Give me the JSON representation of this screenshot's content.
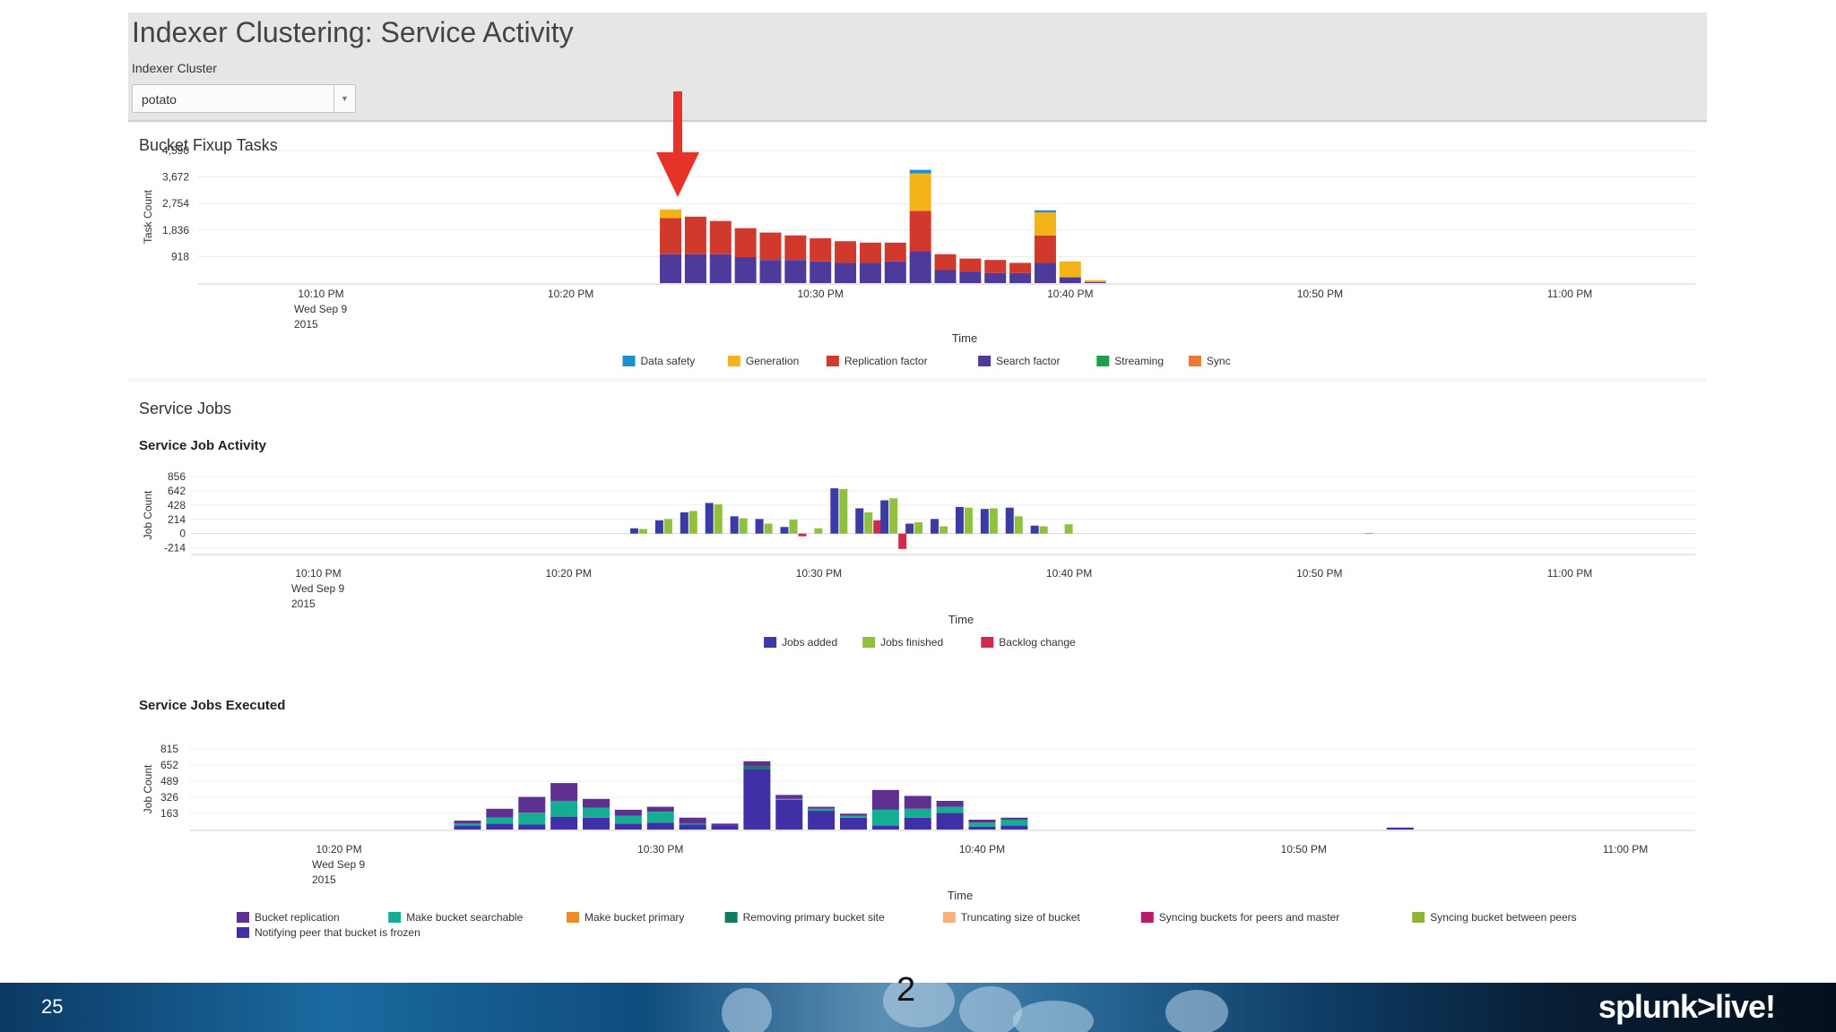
{
  "dashboard": {
    "title": "Indexer Clustering: Service Activity",
    "cluster_label": "Indexer Cluster",
    "cluster_value": "potato"
  },
  "colors": {
    "data_safety": "#1f8ecd",
    "generation": "#f2b418",
    "replication_factor": "#d0392b",
    "search_factor": "#4d3a9a",
    "streaming": "#1e9f4c",
    "sync": "#ee7731",
    "jobs_added": "#3b3ba6",
    "jobs_finished": "#8fc13e",
    "backlog_change": "#d3294e",
    "bucket_replication": "#5e3190",
    "make_bucket_searchable": "#16ae93",
    "make_bucket_primary": "#ef8a2a",
    "removing_primary_bucket_site": "#0d7b62",
    "truncating_size_of_bucket": "#f7b07a",
    "syncing_buckets_for_peers_and_master": "#b61c6a",
    "syncing_bucket_between_peers": "#8cb736",
    "notifying_peer_that_bucket_is_frozen": "#4030a8",
    "red_arrow": "#e5332a"
  },
  "chart_data": [
    {
      "id": "fixup",
      "type": "bar",
      "panel_title": "Bucket Fixup Tasks",
      "xlabel": "Time",
      "ylabel": "Task Count",
      "yticks": [
        "4,590",
        "3,672",
        "2,754",
        "1,836",
        "918"
      ],
      "ytick_values": [
        4590,
        3672,
        2754,
        1836,
        918
      ],
      "ylim": [
        0,
        4590
      ],
      "x_minutes": [
        24,
        25,
        26,
        27,
        28,
        29,
        30,
        31,
        32,
        33,
        34,
        35,
        36,
        37,
        38,
        39,
        40,
        41
      ],
      "xlim_minutes": [
        5,
        65
      ],
      "xticks": [
        {
          "min": 10,
          "lines": [
            "10:10 PM",
            "Wed Sep 9",
            "2015"
          ]
        },
        {
          "min": 20,
          "lines": [
            "10:20 PM"
          ]
        },
        {
          "min": 30,
          "lines": [
            "10:30 PM"
          ]
        },
        {
          "min": 40,
          "lines": [
            "10:40 PM"
          ]
        },
        {
          "min": 50,
          "lines": [
            "10:50 PM"
          ]
        },
        {
          "min": 60,
          "lines": [
            "11:00 PM"
          ]
        }
      ],
      "series": [
        {
          "name": "Data safety",
          "color_key": "data_safety",
          "values": [
            0,
            0,
            0,
            0,
            0,
            0,
            0,
            0,
            0,
            0,
            120,
            0,
            0,
            0,
            0,
            70,
            0,
            0
          ]
        },
        {
          "name": "Generation",
          "color_key": "generation",
          "values": [
            300,
            0,
            0,
            0,
            0,
            0,
            0,
            0,
            0,
            0,
            1300,
            0,
            0,
            0,
            0,
            800,
            550,
            60
          ]
        },
        {
          "name": "Replication factor",
          "color_key": "replication_factor",
          "values": [
            1250,
            1300,
            1150,
            1000,
            950,
            850,
            800,
            750,
            700,
            650,
            1400,
            550,
            450,
            450,
            350,
            950,
            0,
            0
          ]
        },
        {
          "name": "Search factor",
          "color_key": "search_factor",
          "values": [
            1000,
            1000,
            1000,
            900,
            800,
            800,
            750,
            700,
            700,
            750,
            1100,
            450,
            400,
            350,
            350,
            700,
            200,
            40
          ]
        },
        {
          "name": "Streaming",
          "color_key": "streaming",
          "values": []
        },
        {
          "name": "Sync",
          "color_key": "sync",
          "values": []
        }
      ]
    },
    {
      "id": "activity",
      "type": "bar",
      "panel_title": "Service Jobs",
      "title": "Service Job Activity",
      "xlabel": "Time",
      "ylabel": "Job Count",
      "yticks": [
        "856",
        "642",
        "428",
        "214",
        "0",
        "-214"
      ],
      "ytick_values": [
        856,
        642,
        428,
        214,
        0,
        -214
      ],
      "ylim": [
        -300,
        856
      ],
      "x_minutes": [
        23,
        24,
        25,
        26,
        27,
        28,
        29,
        30,
        31,
        32,
        33,
        34,
        35,
        36,
        37,
        38,
        39,
        40,
        41,
        52
      ],
      "xlim_minutes": [
        5,
        65
      ],
      "xticks": [
        {
          "min": 10,
          "lines": [
            "10:10 PM",
            "Wed Sep 9",
            "2015"
          ]
        },
        {
          "min": 20,
          "lines": [
            "10:20 PM"
          ]
        },
        {
          "min": 30,
          "lines": [
            "10:30 PM"
          ]
        },
        {
          "min": 40,
          "lines": [
            "10:40 PM"
          ]
        },
        {
          "min": 50,
          "lines": [
            "10:50 PM"
          ]
        },
        {
          "min": 60,
          "lines": [
            "11:00 PM"
          ]
        }
      ],
      "series": [
        {
          "name": "Jobs added",
          "color_key": "jobs_added",
          "values": [
            80,
            200,
            320,
            460,
            260,
            220,
            100,
            0,
            680,
            380,
            500,
            150,
            220,
            400,
            370,
            390,
            120,
            0,
            0,
            0
          ]
        },
        {
          "name": "Jobs finished",
          "color_key": "jobs_finished",
          "values": [
            70,
            220,
            340,
            440,
            230,
            150,
            210,
            80,
            670,
            320,
            530,
            170,
            110,
            390,
            380,
            260,
            110,
            140,
            0,
            10
          ]
        },
        {
          "name": "Backlog change",
          "color_key": "backlog_change",
          "values": [
            0,
            0,
            0,
            0,
            0,
            0,
            -40,
            0,
            0,
            200,
            -230,
            0,
            0,
            0,
            0,
            0,
            0,
            0,
            0,
            0
          ]
        }
      ]
    },
    {
      "id": "executed",
      "type": "bar",
      "title": "Service Jobs Executed",
      "xlabel": "Time",
      "ylabel": "Job Count",
      "yticks": [
        "815",
        "652",
        "489",
        "326",
        "163"
      ],
      "ytick_values": [
        815,
        652,
        489,
        326,
        163
      ],
      "ylim": [
        0,
        815
      ],
      "x_minutes": [
        24,
        25,
        26,
        27,
        28,
        29,
        30,
        31,
        32,
        33,
        34,
        35,
        36,
        37,
        38,
        39,
        40,
        41,
        42,
        53
      ],
      "xlim_minutes": [
        15,
        65
      ],
      "xticks": [
        {
          "min": 20,
          "lines": [
            "10:20 PM",
            "Wed Sep 9",
            "2015"
          ]
        },
        {
          "min": 30,
          "lines": [
            "10:30 PM"
          ]
        },
        {
          "min": 40,
          "lines": [
            "10:40 PM"
          ]
        },
        {
          "min": 50,
          "lines": [
            "10:50 PM"
          ]
        },
        {
          "min": 60,
          "lines": [
            "11:00 PM"
          ]
        }
      ],
      "series": [
        {
          "name": "Bucket replication",
          "color_key": "bucket_replication",
          "values": [
            30,
            90,
            160,
            180,
            90,
            60,
            50,
            60,
            20,
            50,
            40,
            20,
            20,
            200,
            130,
            60,
            30,
            20,
            0,
            0
          ]
        },
        {
          "name": "Make bucket searchable",
          "color_key": "make_bucket_searchable",
          "values": [
            20,
            60,
            120,
            160,
            100,
            80,
            110,
            10,
            0,
            0,
            10,
            20,
            20,
            160,
            90,
            60,
            40,
            60,
            0,
            0
          ]
        },
        {
          "name": "Make bucket primary",
          "color_key": "make_bucket_primary",
          "values": []
        },
        {
          "name": "Removing primary bucket site",
          "color_key": "removing_primary_bucket_site",
          "values": [
            0,
            0,
            0,
            0,
            0,
            0,
            0,
            0,
            0,
            30,
            0,
            0,
            0,
            0,
            0,
            0,
            0,
            0,
            0,
            0
          ]
        },
        {
          "name": "Truncating size of bucket",
          "color_key": "truncating_size_of_bucket",
          "values": []
        },
        {
          "name": "Syncing buckets for peers and master",
          "color_key": "syncing_buckets_for_peers_and_master",
          "values": []
        },
        {
          "name": "Syncing bucket between peers",
          "color_key": "syncing_bucket_between_peers",
          "values": []
        },
        {
          "name": "Notifying peer that bucket is frozen",
          "color_key": "notifying_peer_that_bucket_is_frozen",
          "values": [
            40,
            60,
            50,
            130,
            120,
            60,
            70,
            50,
            40,
            610,
            300,
            190,
            120,
            40,
            120,
            170,
            30,
            40,
            0,
            20
          ]
        }
      ]
    }
  ],
  "footer": {
    "slide_number": "25",
    "page_mark": "2",
    "brand": "splunk>live!"
  }
}
